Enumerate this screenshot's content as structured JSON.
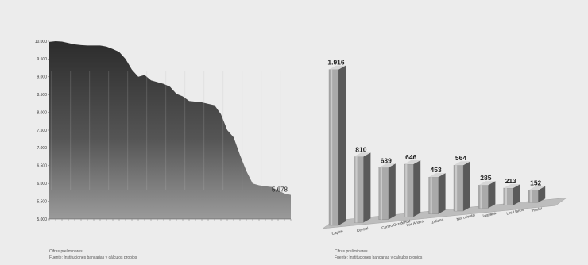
{
  "chart_data": [
    {
      "type": "area",
      "categories": [
        "",
        "",
        "",
        "",
        "",
        "",
        "",
        "",
        "",
        "",
        "",
        "",
        "",
        "",
        "",
        "",
        "",
        "",
        "",
        "",
        "",
        "",
        "",
        "",
        "",
        "",
        "",
        "",
        "",
        "",
        "",
        "",
        "",
        "",
        "",
        "",
        "",
        "",
        ""
      ],
      "y_ticks": [
        "10.000",
        "9.500",
        "9.000",
        "8.500",
        "8.000",
        "7.500",
        "7.000",
        "6.500",
        "6.000",
        "5.500",
        "5.000"
      ],
      "ylim": [
        5000,
        10000
      ],
      "values": [
        9980,
        10000,
        9990,
        9950,
        9910,
        9890,
        9880,
        9880,
        9880,
        9850,
        9780,
        9700,
        9500,
        9200,
        9000,
        9050,
        8900,
        8850,
        8800,
        8720,
        8520,
        8450,
        8320,
        8300,
        8280,
        8240,
        8200,
        7950,
        7500,
        7300,
        6800,
        6350,
        6000,
        5950,
        5920,
        5900,
        5800,
        5720,
        5678
      ],
      "end_label": "5.678",
      "grid": false,
      "note": "Cifras preliminares",
      "source": "Fuente: Instituciones bancarias y cálculos propios"
    },
    {
      "type": "bar",
      "categories": [
        "Capital",
        "Central",
        "Centro Occidental",
        "Los Andes",
        "Zuliana",
        "Nor oriental",
        "Guayana",
        "Los Llanos",
        "Insular"
      ],
      "values": [
        1916,
        810,
        639,
        646,
        453,
        564,
        285,
        213,
        152
      ],
      "value_labels": [
        "1.916",
        "810",
        "639",
        "646",
        "453",
        "564",
        "285",
        "213",
        "152"
      ],
      "ylim": [
        0,
        2000
      ],
      "grid": false,
      "note": "Cifras preliminares",
      "source": "Fuente: Instituciones bancarias y cálculos propios"
    }
  ],
  "colors": {
    "background": "#ececec",
    "area_top": "#2e2e2e",
    "area_bottom": "#9a9a9a",
    "bar_front": "#aaaaaa",
    "bar_side": "#5a5a5a",
    "bar_top": "#d6d6d6",
    "floor": "#bdbdbd"
  }
}
